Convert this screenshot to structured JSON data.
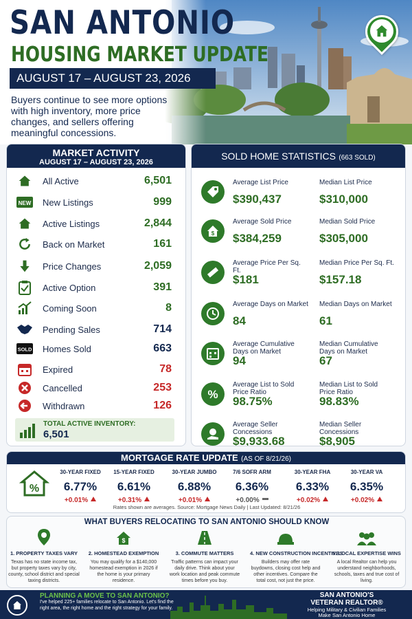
{
  "header": {
    "title_line1": "SAN ANTONIO",
    "title_line2": "HOUSING MARKET UPDATE",
    "date_range": "AUGUST 17 – AUGUST 23, 2026",
    "intro": "Buyers continue to see more options with high inventory, more price changes, and sellers offering meaningful concessions."
  },
  "market_activity": {
    "title": "MARKET ACTIVITY",
    "subtitle": "AUGUST 17 – AUGUST 23, 2026",
    "rows": [
      {
        "label": "All Active",
        "value": "6,501",
        "color": "#2e6d24",
        "icon": "house-icon"
      },
      {
        "label": "New Listings",
        "value": "999",
        "color": "#2e6d24",
        "icon": "new-badge-icon",
        "badge": "NEW"
      },
      {
        "label": "Active Listings",
        "value": "2,844",
        "color": "#2e6d24",
        "icon": "house-icon"
      },
      {
        "label": "Back on Market",
        "value": "161",
        "color": "#2e6d24",
        "icon": "refresh-icon"
      },
      {
        "label": "Price Changes",
        "value": "2,059",
        "color": "#2e6d24",
        "icon": "arrow-down-icon"
      },
      {
        "label": "Active Option",
        "value": "391",
        "color": "#2e6d24",
        "icon": "clipboard-check-icon"
      },
      {
        "label": "Coming Soon",
        "value": "8",
        "color": "#2e6d24",
        "icon": "chart-up-icon"
      },
      {
        "label": "Pending Sales",
        "value": "714",
        "color": "#13284f",
        "icon": "handshake-icon"
      },
      {
        "label": "Homes Sold",
        "value": "663",
        "color": "#13284f",
        "icon": "sold-sign-icon",
        "badge": "SOLD"
      },
      {
        "label": "Expired",
        "value": "78",
        "color": "#c62828",
        "icon": "calendar-icon"
      },
      {
        "label": "Cancelled",
        "value": "253",
        "color": "#c62828",
        "icon": "x-circle-icon"
      },
      {
        "label": "Withdrawn",
        "value": "126",
        "color": "#c62828",
        "icon": "arrow-left-circle-icon"
      }
    ],
    "total_label": "TOTAL ACTIVE INVENTORY:",
    "total_value": "6,501"
  },
  "sold_stats": {
    "title": "SOLD HOME STATISTICS",
    "count": "(663 SOLD)",
    "rows": [
      {
        "icon": "price-tag-icon",
        "left_label": "Average List Price",
        "left_value": "$390,437",
        "right_label": "Median List Price",
        "right_value": "$310,000"
      },
      {
        "icon": "house-dollar-icon",
        "left_label": "Average Sold Price",
        "left_value": "$384,259",
        "right_label": "Median Sold Price",
        "right_value": "$305,000"
      },
      {
        "icon": "ruler-icon",
        "left_label": "Average Price Per Sq. Ft.",
        "left_value": "$181",
        "right_label": "Median Price Per Sq. Ft.",
        "right_value": "$157.18"
      },
      {
        "icon": "clock-icon",
        "left_label": "Average Days on Market",
        "left_value": "84",
        "right_label": "Median Days on Market",
        "right_value": "61"
      },
      {
        "icon": "calendar-grid-icon",
        "left_label": "Average Cumulative Days on Market",
        "left_value": "94",
        "right_label": "Median Cumulative Days on Market",
        "right_value": "67"
      },
      {
        "icon": "percent-icon",
        "left_label": "Average List to Sold Price Ratio",
        "left_value": "98.75%",
        "right_label": "Median List to Sold Price Ratio",
        "right_value": "98.83%"
      },
      {
        "icon": "hand-money-icon",
        "left_label": "Average Seller Concessions",
        "left_value": "$9,933.68",
        "right_label": "Median Seller Concessions",
        "right_value": "$8,905"
      }
    ]
  },
  "mortgage": {
    "title": "MORTGAGE RATE UPDATE",
    "as_of": "(AS OF 8/21/26)",
    "rates": [
      {
        "label": "30-YEAR FIXED",
        "value": "6.77%",
        "change": "+0.01%",
        "dir": "up"
      },
      {
        "label": "15-YEAR FIXED",
        "value": "6.61%",
        "change": "+0.31%",
        "dir": "up"
      },
      {
        "label": "30-YEAR JUMBO",
        "value": "6.88%",
        "change": "+0.01%",
        "dir": "up"
      },
      {
        "label": "7/6 SOFR ARM",
        "value": "6.36%",
        "change": "+0.00%",
        "dir": "flat"
      },
      {
        "label": "30-YEAR FHA",
        "value": "6.33%",
        "change": "+0.02%",
        "dir": "up"
      },
      {
        "label": "30-YEAR VA",
        "value": "6.35%",
        "change": "+0.02%",
        "dir": "up"
      }
    ],
    "footnote": "Rates shown are averages. Source: Mortgage News Daily | Last Updated: 8/21/26"
  },
  "know": {
    "title": "WHAT BUYERS RELOCATING TO SAN ANTONIO SHOULD KNOW",
    "items": [
      {
        "icon": "location-pin-icon",
        "title": "1. PROPERTY TAXES VARY",
        "body": "Texas has no state income tax, but property taxes vary by city, county, school district and special taxing districts."
      },
      {
        "icon": "house-dollar-icon",
        "title": "2. HOMESTEAD EXEMPTION",
        "body": "You may qualify for a $140,000 homestead exemption in 2026 if the home is your primary residence."
      },
      {
        "icon": "road-icon",
        "title": "3. COMMUTE MATTERS",
        "body": "Traffic patterns can impact your daily drive. Think about your work location and peak commute times before you buy."
      },
      {
        "icon": "hard-hat-icon",
        "title": "4. NEW CONSTRUCTION INCENTIVES",
        "body": "Builders may offer rate buydowns, closing cost help and other incentives. Compare the total cost, not just the price."
      },
      {
        "icon": "people-icon",
        "title": "5. LOCAL EXPERTISE WINS",
        "body": "A local Realtor can help you understand neighborhoods, schools, taxes and true cost of living."
      }
    ]
  },
  "footer": {
    "headline": "PLANNING A MOVE TO SAN ANTONIO?",
    "body": "I've helped 225+ families relocate to San Antonio. Let's find the right area, the right home and the right strategy for your family.",
    "brand_line1": "SAN ANTONIO'S",
    "brand_line2": "VETERAN REALTOR®",
    "brand_line3": "Helping Military & Civilian Families",
    "brand_line4": "Make San Antonio Home"
  },
  "colors": {
    "navy": "#13284f",
    "green": "#2e6d24",
    "red": "#c62828"
  }
}
